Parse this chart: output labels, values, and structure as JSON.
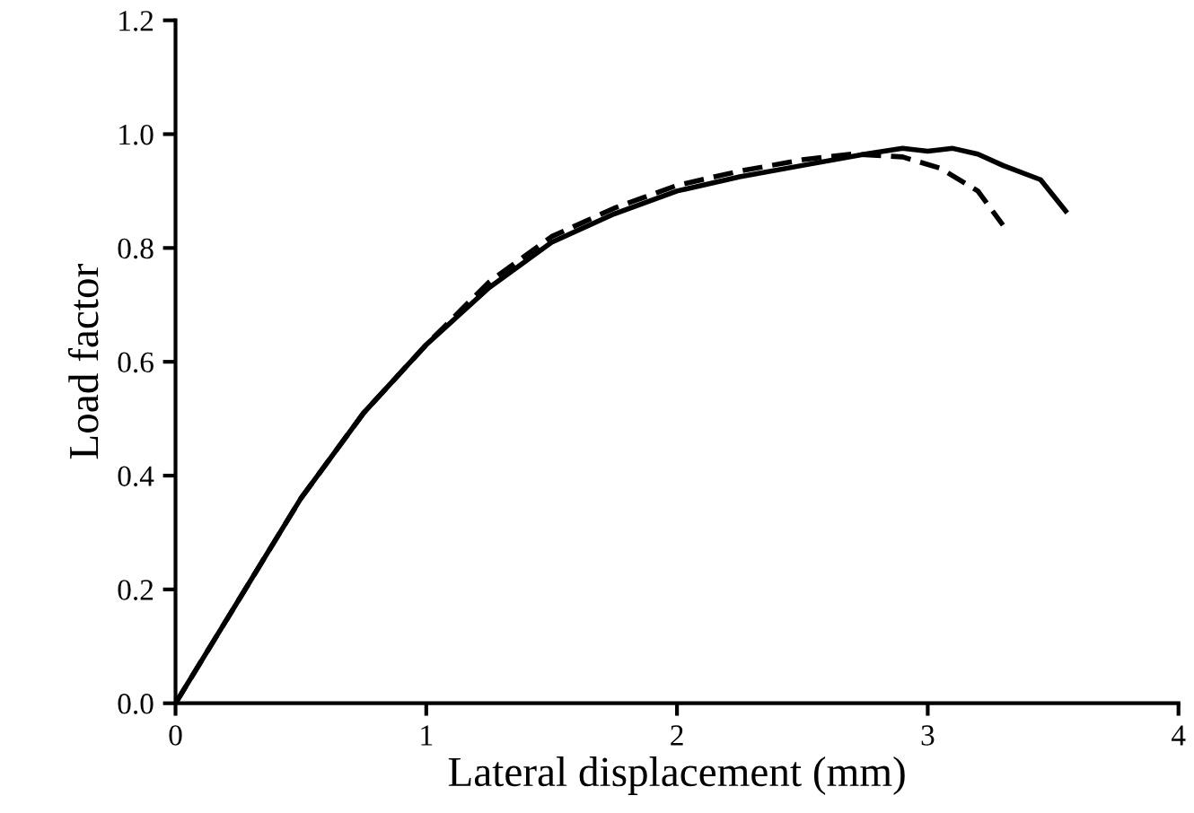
{
  "chart_data": {
    "type": "line",
    "xlabel": "Lateral displacement (mm)",
    "ylabel": "Load factor",
    "xlim": [
      0,
      4
    ],
    "xticks": [
      0,
      1,
      2,
      3,
      4
    ],
    "ylim": [
      0,
      1.2
    ],
    "yticks": [
      {
        "value": 0,
        "label": "0.0"
      },
      {
        "value": 0.2,
        "label": "0.2"
      },
      {
        "value": 0.4,
        "label": "0.4"
      },
      {
        "value": 0.6,
        "label": "0.6"
      },
      {
        "value": 0.8,
        "label": "0.8"
      },
      {
        "value": 1.0,
        "label": "1.0"
      },
      {
        "value": 1.2,
        "label": "1.2"
      }
    ],
    "grid": false,
    "marker": "none",
    "series": [
      {
        "color": "#000000",
        "line_style": "dashed",
        "x": [
          0,
          0.25,
          0.5,
          0.75,
          1.0,
          1.25,
          1.5,
          1.75,
          2.0,
          2.25,
          2.5,
          2.7,
          2.9,
          3.05,
          3.2,
          3.3
        ],
        "values": [
          0,
          0.18,
          0.36,
          0.51,
          0.63,
          0.74,
          0.82,
          0.87,
          0.91,
          0.935,
          0.955,
          0.965,
          0.96,
          0.94,
          0.9,
          0.84
        ]
      },
      {
        "color": "#000000",
        "line_style": "solid",
        "x": [
          0,
          0.25,
          0.5,
          0.75,
          1.0,
          1.25,
          1.5,
          1.75,
          2.0,
          2.25,
          2.5,
          2.75,
          2.9,
          3.0,
          3.1,
          3.2,
          3.3,
          3.45,
          3.55
        ],
        "values": [
          0,
          0.18,
          0.36,
          0.51,
          0.63,
          0.73,
          0.81,
          0.86,
          0.9,
          0.925,
          0.945,
          0.965,
          0.975,
          0.97,
          0.975,
          0.965,
          0.945,
          0.92,
          0.865
        ]
      }
    ]
  }
}
